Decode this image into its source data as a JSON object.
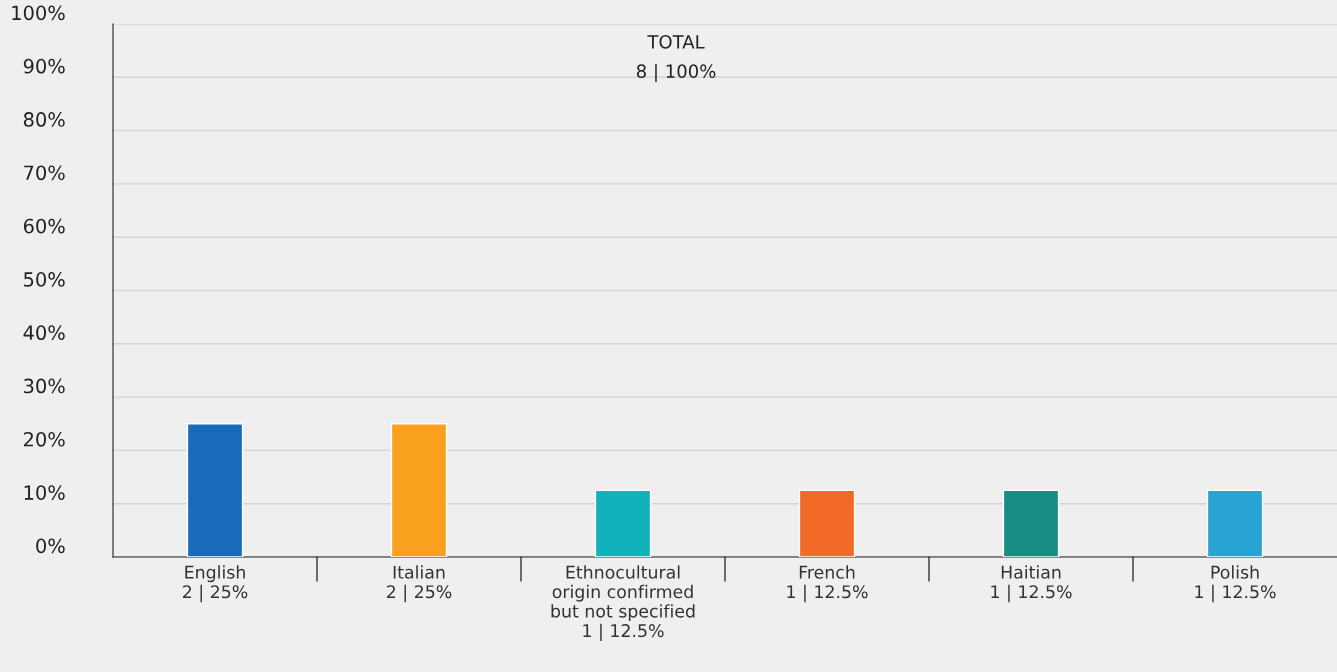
{
  "chart_data": {
    "type": "bar",
    "title": "TOTAL",
    "subtitle": "8 | 100%",
    "categories": [
      "English\n2 | 25%",
      "Italian\n2 | 25%",
      "Ethnocultural\norigin confirmed\nbut not specified\n1 | 12.5%",
      "French\n1 | 12.5%",
      "Haitian\n1 | 12.5%",
      "Polish\n1 | 12.5%"
    ],
    "values": [
      25,
      25,
      12.5,
      12.5,
      12.5,
      12.5
    ],
    "colors": [
      "#176bb8",
      "#f9a11f",
      "#11b2bb",
      "#f26a27",
      "#178c83",
      "#27a4d3"
    ],
    "ylim": [
      0,
      100
    ],
    "yticks": [
      {
        "value": 0,
        "label": "0%"
      },
      {
        "value": 10,
        "label": "10%"
      },
      {
        "value": 20,
        "label": "20%"
      },
      {
        "value": 30,
        "label": "30%"
      },
      {
        "value": 40,
        "label": "40%"
      },
      {
        "value": 50,
        "label": "50%"
      },
      {
        "value": 60,
        "label": "60%"
      },
      {
        "value": 70,
        "label": "70%"
      },
      {
        "value": 80,
        "label": "80%"
      },
      {
        "value": 90,
        "label": "90%"
      },
      {
        "value": 100,
        "label": "100%"
      }
    ],
    "grid": "y",
    "legend": false
  }
}
